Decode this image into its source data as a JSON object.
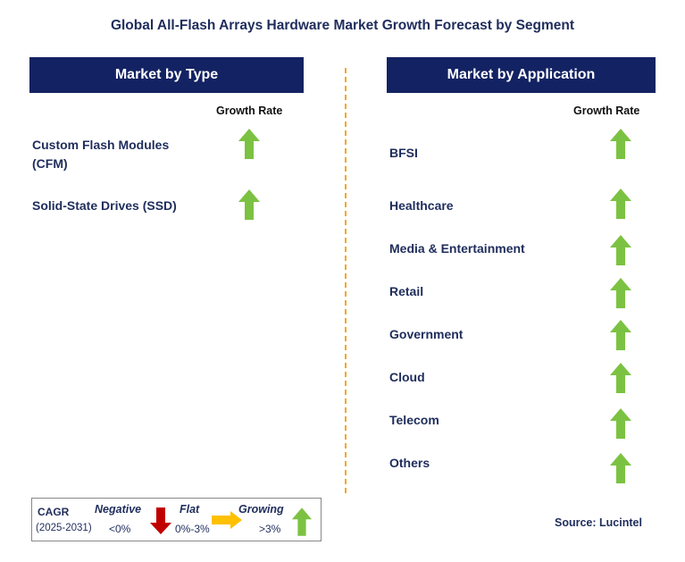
{
  "title": "Global All-Flash Arrays Hardware Market Growth Forecast by Segment",
  "left_panel": {
    "header": "Market by Type",
    "growth_rate_label": "Growth Rate",
    "items": [
      {
        "line1": "Custom Flash Modules",
        "line2": "(CFM)",
        "trend": "growing"
      },
      {
        "line1": "Solid-State Drives (SSD)",
        "line2": "",
        "trend": "growing"
      }
    ]
  },
  "right_panel": {
    "header": "Market by Application",
    "growth_rate_label": "Growth Rate",
    "items": [
      {
        "label": "BFSI",
        "trend": "growing"
      },
      {
        "label": "Healthcare",
        "trend": "growing"
      },
      {
        "label": "Media & Entertainment",
        "trend": "growing"
      },
      {
        "label": "Retail",
        "trend": "growing"
      },
      {
        "label": "Government",
        "trend": "growing"
      },
      {
        "label": "Cloud",
        "trend": "growing"
      },
      {
        "label": "Telecom",
        "trend": "growing"
      },
      {
        "label": "Others",
        "trend": "growing"
      }
    ]
  },
  "legend": {
    "cagr_label": "CAGR",
    "period": "(2025-2031)",
    "negative": {
      "label": "Negative",
      "range": "<0%",
      "icon": "red-down-arrow-icon"
    },
    "flat": {
      "label": "Flat",
      "range": "0%-3%",
      "icon": "orange-right-arrow-icon"
    },
    "growing": {
      "label": "Growing",
      "range": ">3%",
      "icon": "green-up-arrow-icon"
    }
  },
  "source": "Source: Lucintel",
  "colors": {
    "header_bg": "#132262",
    "title_text": "#1f2d5c",
    "growing": "#7cc242",
    "negative": "#c00000",
    "flat": "#ffc000",
    "divider": "#f5a623"
  }
}
